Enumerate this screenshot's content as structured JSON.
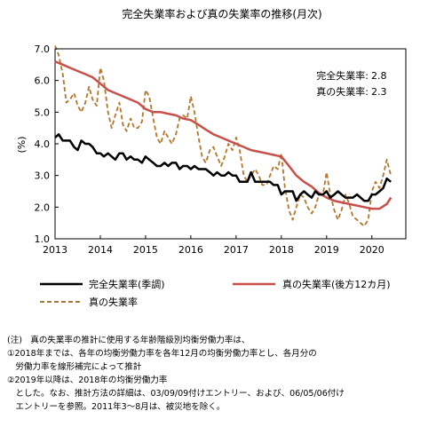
{
  "chart_data": {
    "type": "line",
    "title": "完全失業率および真の失業率の推移(月次)",
    "ylabel": "(%)",
    "ylim": [
      1.0,
      7.0
    ],
    "yticks": [
      "1.0",
      "2.0",
      "3.0",
      "4.0",
      "5.0",
      "6.0",
      "7.0"
    ],
    "xlim": [
      2013.0,
      2020.75
    ],
    "xticks": [
      "2013",
      "2014",
      "2015",
      "2016",
      "2017",
      "2018",
      "2019",
      "2020"
    ],
    "grid": false,
    "legend_position": "bottom",
    "annotations": [
      {
        "label": "完全失業率:",
        "value": "2.8"
      },
      {
        "label": "真の失業率:",
        "value": "2.3"
      }
    ],
    "series": [
      {
        "name": "完全失業率(季調)",
        "color": "#000000",
        "style": "solid",
        "points": [
          [
            2013.0,
            4.2
          ],
          [
            2013.08,
            4.3
          ],
          [
            2013.17,
            4.1
          ],
          [
            2013.25,
            4.1
          ],
          [
            2013.33,
            4.1
          ],
          [
            2013.42,
            3.9
          ],
          [
            2013.5,
            3.8
          ],
          [
            2013.58,
            4.1
          ],
          [
            2013.67,
            4.0
          ],
          [
            2013.75,
            4.0
          ],
          [
            2013.83,
            3.9
          ],
          [
            2013.92,
            3.7
          ],
          [
            2014.0,
            3.7
          ],
          [
            2014.08,
            3.6
          ],
          [
            2014.17,
            3.7
          ],
          [
            2014.25,
            3.6
          ],
          [
            2014.33,
            3.5
          ],
          [
            2014.42,
            3.7
          ],
          [
            2014.5,
            3.7
          ],
          [
            2014.58,
            3.5
          ],
          [
            2014.67,
            3.6
          ],
          [
            2014.75,
            3.5
          ],
          [
            2014.83,
            3.5
          ],
          [
            2014.92,
            3.4
          ],
          [
            2015.0,
            3.6
          ],
          [
            2015.08,
            3.5
          ],
          [
            2015.17,
            3.4
          ],
          [
            2015.25,
            3.3
          ],
          [
            2015.33,
            3.3
          ],
          [
            2015.42,
            3.4
          ],
          [
            2015.5,
            3.3
          ],
          [
            2015.58,
            3.4
          ],
          [
            2015.67,
            3.4
          ],
          [
            2015.75,
            3.2
          ],
          [
            2015.83,
            3.3
          ],
          [
            2015.92,
            3.3
          ],
          [
            2016.0,
            3.2
          ],
          [
            2016.08,
            3.3
          ],
          [
            2016.17,
            3.2
          ],
          [
            2016.25,
            3.2
          ],
          [
            2016.33,
            3.2
          ],
          [
            2016.42,
            3.1
          ],
          [
            2016.5,
            3.0
          ],
          [
            2016.58,
            3.1
          ],
          [
            2016.67,
            3.0
          ],
          [
            2016.75,
            3.0
          ],
          [
            2016.83,
            3.1
          ],
          [
            2016.92,
            3.0
          ],
          [
            2017.0,
            3.0
          ],
          [
            2017.08,
            2.8
          ],
          [
            2017.17,
            2.8
          ],
          [
            2017.25,
            2.8
          ],
          [
            2017.33,
            3.1
          ],
          [
            2017.42,
            2.8
          ],
          [
            2017.5,
            2.8
          ],
          [
            2017.58,
            2.8
          ],
          [
            2017.67,
            2.8
          ],
          [
            2017.75,
            2.8
          ],
          [
            2017.83,
            2.7
          ],
          [
            2017.92,
            2.7
          ],
          [
            2018.0,
            2.4
          ],
          [
            2018.08,
            2.5
          ],
          [
            2018.17,
            2.5
          ],
          [
            2018.25,
            2.5
          ],
          [
            2018.33,
            2.2
          ],
          [
            2018.42,
            2.4
          ],
          [
            2018.5,
            2.5
          ],
          [
            2018.58,
            2.4
          ],
          [
            2018.67,
            2.3
          ],
          [
            2018.75,
            2.5
          ],
          [
            2018.83,
            2.4
          ],
          [
            2018.92,
            2.4
          ],
          [
            2019.0,
            2.5
          ],
          [
            2019.08,
            2.3
          ],
          [
            2019.17,
            2.4
          ],
          [
            2019.25,
            2.5
          ],
          [
            2019.33,
            2.4
          ],
          [
            2019.42,
            2.3
          ],
          [
            2019.5,
            2.3
          ],
          [
            2019.58,
            2.3
          ],
          [
            2019.67,
            2.4
          ],
          [
            2019.75,
            2.3
          ],
          [
            2019.83,
            2.2
          ],
          [
            2019.92,
            2.2
          ],
          [
            2020.0,
            2.4
          ],
          [
            2020.08,
            2.4
          ],
          [
            2020.17,
            2.5
          ],
          [
            2020.25,
            2.6
          ],
          [
            2020.33,
            2.9
          ],
          [
            2020.42,
            2.8
          ]
        ]
      },
      {
        "name": "真の失業率(後方12カ月)",
        "color": "#c8504a",
        "style": "solid",
        "points": [
          [
            2013.0,
            6.6
          ],
          [
            2013.17,
            6.5
          ],
          [
            2013.33,
            6.4
          ],
          [
            2013.5,
            6.3
          ],
          [
            2013.67,
            6.2
          ],
          [
            2013.83,
            6.1
          ],
          [
            2014.0,
            5.9
          ],
          [
            2014.17,
            5.7
          ],
          [
            2014.33,
            5.6
          ],
          [
            2014.5,
            5.5
          ],
          [
            2014.67,
            5.4
          ],
          [
            2014.83,
            5.3
          ],
          [
            2015.0,
            5.1
          ],
          [
            2015.17,
            5.0
          ],
          [
            2015.33,
            5.0
          ],
          [
            2015.5,
            4.95
          ],
          [
            2015.67,
            4.9
          ],
          [
            2015.83,
            4.8
          ],
          [
            2016.0,
            4.75
          ],
          [
            2016.17,
            4.6
          ],
          [
            2016.33,
            4.45
          ],
          [
            2016.5,
            4.3
          ],
          [
            2016.67,
            4.2
          ],
          [
            2016.83,
            4.1
          ],
          [
            2017.0,
            4.0
          ],
          [
            2017.17,
            3.9
          ],
          [
            2017.33,
            3.8
          ],
          [
            2017.5,
            3.75
          ],
          [
            2017.67,
            3.7
          ],
          [
            2017.83,
            3.65
          ],
          [
            2018.0,
            3.6
          ],
          [
            2018.17,
            3.3
          ],
          [
            2018.33,
            3.0
          ],
          [
            2018.5,
            2.8
          ],
          [
            2018.67,
            2.65
          ],
          [
            2018.83,
            2.45
          ],
          [
            2019.0,
            2.3
          ],
          [
            2019.17,
            2.2
          ],
          [
            2019.33,
            2.15
          ],
          [
            2019.5,
            2.1
          ],
          [
            2019.67,
            2.05
          ],
          [
            2019.83,
            2.0
          ],
          [
            2020.0,
            1.95
          ],
          [
            2020.17,
            1.95
          ],
          [
            2020.33,
            2.1
          ],
          [
            2020.42,
            2.3
          ]
        ]
      },
      {
        "name": "真の失業率",
        "color": "#b5762a",
        "style": "dashed",
        "points": [
          [
            2013.0,
            7.1
          ],
          [
            2013.08,
            6.8
          ],
          [
            2013.17,
            6.2
          ],
          [
            2013.25,
            5.3
          ],
          [
            2013.33,
            5.4
          ],
          [
            2013.42,
            5.6
          ],
          [
            2013.5,
            5.2
          ],
          [
            2013.58,
            5.0
          ],
          [
            2013.67,
            5.3
          ],
          [
            2013.75,
            5.8
          ],
          [
            2013.83,
            5.4
          ],
          [
            2013.92,
            5.2
          ],
          [
            2014.0,
            6.4
          ],
          [
            2014.08,
            6.0
          ],
          [
            2014.17,
            5.0
          ],
          [
            2014.25,
            4.5
          ],
          [
            2014.33,
            4.9
          ],
          [
            2014.42,
            5.3
          ],
          [
            2014.5,
            4.6
          ],
          [
            2014.58,
            4.4
          ],
          [
            2014.67,
            4.8
          ],
          [
            2014.75,
            4.5
          ],
          [
            2014.83,
            4.5
          ],
          [
            2014.92,
            4.7
          ],
          [
            2015.0,
            5.7
          ],
          [
            2015.08,
            5.5
          ],
          [
            2015.17,
            4.8
          ],
          [
            2015.25,
            4.2
          ],
          [
            2015.33,
            4.0
          ],
          [
            2015.42,
            4.4
          ],
          [
            2015.5,
            4.2
          ],
          [
            2015.58,
            4.0
          ],
          [
            2015.67,
            4.3
          ],
          [
            2015.75,
            4.8
          ],
          [
            2015.83,
            4.9
          ],
          [
            2015.92,
            4.8
          ],
          [
            2016.0,
            5.5
          ],
          [
            2016.08,
            5.0
          ],
          [
            2016.17,
            4.2
          ],
          [
            2016.25,
            3.6
          ],
          [
            2016.33,
            3.4
          ],
          [
            2016.42,
            3.8
          ],
          [
            2016.5,
            3.9
          ],
          [
            2016.58,
            3.6
          ],
          [
            2016.67,
            3.3
          ],
          [
            2016.75,
            3.6
          ],
          [
            2016.83,
            4.0
          ],
          [
            2016.92,
            3.8
          ],
          [
            2017.0,
            4.2
          ],
          [
            2017.08,
            3.8
          ],
          [
            2017.17,
            3.0
          ],
          [
            2017.25,
            2.8
          ],
          [
            2017.33,
            3.0
          ],
          [
            2017.42,
            3.2
          ],
          [
            2017.5,
            3.0
          ],
          [
            2017.58,
            2.7
          ],
          [
            2017.67,
            2.7
          ],
          [
            2017.75,
            3.0
          ],
          [
            2017.83,
            3.3
          ],
          [
            2017.92,
            3.2
          ],
          [
            2018.0,
            3.7
          ],
          [
            2018.08,
            2.6
          ],
          [
            2018.17,
            1.9
          ],
          [
            2018.25,
            1.6
          ],
          [
            2018.33,
            2.0
          ],
          [
            2018.42,
            2.4
          ],
          [
            2018.5,
            2.3
          ],
          [
            2018.58,
            2.0
          ],
          [
            2018.67,
            1.8
          ],
          [
            2018.75,
            2.0
          ],
          [
            2018.83,
            2.4
          ],
          [
            2018.92,
            2.4
          ],
          [
            2019.0,
            3.1
          ],
          [
            2019.08,
            2.4
          ],
          [
            2019.17,
            1.9
          ],
          [
            2019.25,
            1.6
          ],
          [
            2019.33,
            1.9
          ],
          [
            2019.42,
            2.4
          ],
          [
            2019.5,
            2.1
          ],
          [
            2019.58,
            1.7
          ],
          [
            2019.67,
            1.6
          ],
          [
            2019.75,
            1.5
          ],
          [
            2019.83,
            1.4
          ],
          [
            2019.92,
            1.6
          ],
          [
            2020.0,
            2.5
          ],
          [
            2020.08,
            2.8
          ],
          [
            2020.17,
            2.6
          ],
          [
            2020.25,
            3.0
          ],
          [
            2020.33,
            3.5
          ],
          [
            2020.42,
            3.0
          ]
        ]
      }
    ]
  },
  "notes": [
    "(注)　真の失業率の推計に使用する年齢階級別均衡労働力率は、",
    "①2018年までは、各年の均衡労働力率を各年12月の均衡労働力率とし、各月分の",
    "　労働力率を線形補完によって推計",
    "②2019年以降は、2018年の均衡労働力率",
    "　とした。なお、推計方法の詳細は、03/09/09付けエントリー、および、06/05/06付け",
    "　エントリーを参照。2011年3～8月は、被災地を除く。"
  ]
}
